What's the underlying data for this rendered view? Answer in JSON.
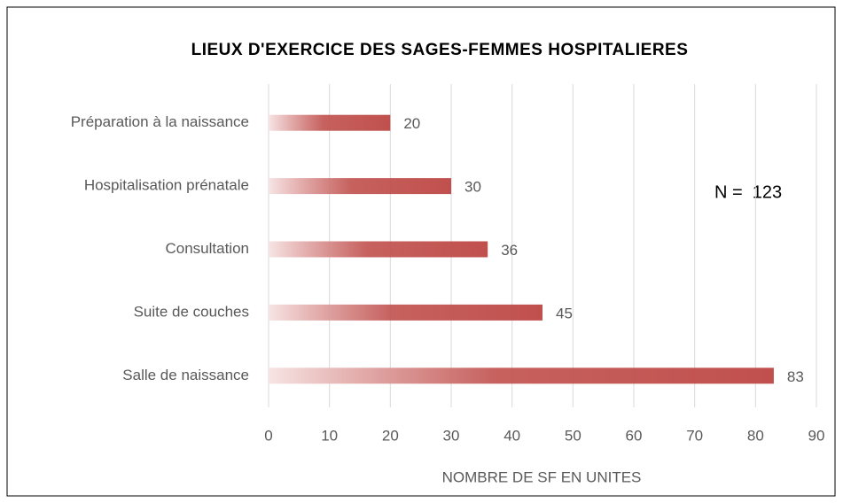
{
  "chart_data": {
    "type": "bar",
    "orientation": "horizontal",
    "title": "LIEUX D'EXERCICE DES SAGES-FEMMES HOSPITALIERES",
    "x_label": "NOMBRE DE SF EN UNITES",
    "annotation": "N =  123",
    "categories": [
      "Préparation à la naissance",
      "Hospitalisation prénatale",
      "Consultation",
      "Suite de couches",
      "Salle de naissance"
    ],
    "values": [
      20,
      30,
      36,
      45,
      83
    ],
    "color": "#c0504d",
    "xlim": [
      0,
      90
    ],
    "xticks": [
      0,
      10,
      20,
      30,
      40,
      50,
      60,
      70,
      80,
      90
    ],
    "grid": true
  }
}
